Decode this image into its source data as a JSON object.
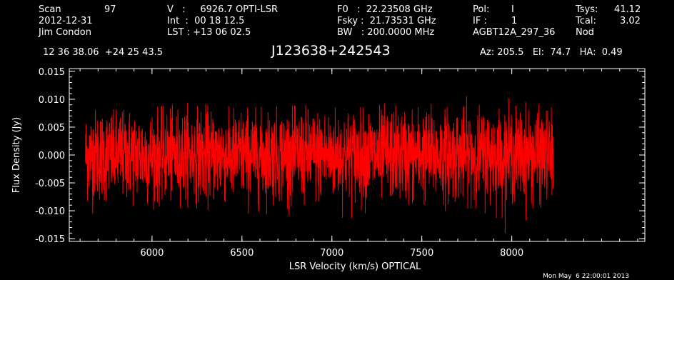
{
  "header": {
    "scan_label": "Scan",
    "scan_value": "97",
    "date": "2012-12-31",
    "observer": "Jim Condon",
    "v_line": "V   :     6926.7 OPTI-LSR",
    "int_line": "Int  :  00 18 12.5",
    "lst_line": "LST : +13 06 02.5",
    "f0_line": "F0   :  22.23508 GHz",
    "fsky_line": "Fsky :  21.73531 GHz",
    "bw_line": "BW   : 200.0000 MHz",
    "pol_label": "Pol:",
    "pol_value": "I",
    "if_label": "IF :",
    "if_value": "1",
    "project": "AGBT12A_297_36",
    "tsys_label": "Tsys:",
    "tsys_value": "41.12",
    "tcal_label": "Tcal:",
    "tcal_value": "3.02",
    "mode": "Nod",
    "coords": "12 36 38.06  +24 25 43.5",
    "source": "J123638+242543",
    "az_el_ha": "Az: 205.5   El:  74.7   HA:  0.49",
    "timestamp": "Mon May  6 22:00:01 2013"
  },
  "chart_data": {
    "type": "line",
    "xlabel": "LSR Velocity (km/s) OPTICAL",
    "ylabel": "Flux Density (Jy)",
    "xlim": [
      5540,
      8740
    ],
    "ylim": [
      -0.0155,
      0.0155
    ],
    "xticks": [
      6000,
      6500,
      7000,
      7500,
      8000
    ],
    "xtick_labels": [
      "6000",
      "6500",
      "7000",
      "7500",
      "8000"
    ],
    "yticks": [
      -0.015,
      -0.01,
      -0.005,
      0.0,
      0.005,
      0.01,
      0.015
    ],
    "ytick_labels": [
      "-0.015",
      "-0.010",
      "-0.005",
      "0.000",
      "0.005",
      "0.010",
      "0.015"
    ],
    "series_color": "#ff0000",
    "axis_color": "#ffffff",
    "background": "#000000",
    "series": [
      {
        "x_start": 5630,
        "x_end": 8230,
        "rms": 0.004,
        "envelope": [
          {
            "x": 5630,
            "upper": 0.0085,
            "lower": -0.0115
          },
          {
            "x": 5900,
            "upper": 0.008,
            "lower": -0.01
          },
          {
            "x": 6200,
            "upper": 0.0095,
            "lower": -0.0095
          },
          {
            "x": 6500,
            "upper": 0.0085,
            "lower": -0.0105
          },
          {
            "x": 6900,
            "upper": 0.009,
            "lower": -0.011
          },
          {
            "x": 7200,
            "upper": 0.0085,
            "lower": -0.0115
          },
          {
            "x": 7500,
            "upper": 0.011,
            "lower": -0.0105
          },
          {
            "x": 7800,
            "upper": 0.012,
            "lower": -0.0095
          },
          {
            "x": 8000,
            "upper": 0.01,
            "lower": -0.015
          },
          {
            "x": 8230,
            "upper": 0.0085,
            "lower": -0.01
          }
        ]
      }
    ]
  }
}
